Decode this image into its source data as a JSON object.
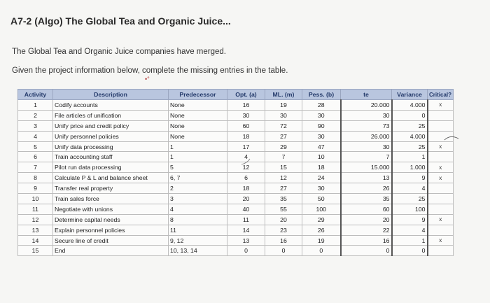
{
  "header": {
    "title": "A7-2 (Algo) The Global Tea and Organic Juice...",
    "para1": "The Global Tea and Organic Juice companies have merged.",
    "para2": "Given the project information below, complete the missing entries in the table."
  },
  "table": {
    "headers": [
      "Activity",
      "Description",
      "Predecessor",
      "Opt. (a)",
      "ML. (m)",
      "Pess. (b)",
      "te",
      "Variance",
      "Critical?"
    ],
    "rows": [
      {
        "act": "1",
        "desc": "Codify accounts",
        "pred": "None",
        "a": "16",
        "m": "19",
        "b": "28",
        "te": "20.000",
        "var": "4.000",
        "crit": "x"
      },
      {
        "act": "2",
        "desc": "File articles of unification",
        "pred": "None",
        "a": "30",
        "m": "30",
        "b": "30",
        "te": "30",
        "var": "0",
        "crit": ""
      },
      {
        "act": "3",
        "desc": "Unify price and credit policy",
        "pred": "None",
        "a": "60",
        "m": "72",
        "b": "90",
        "te": "73",
        "var": "25",
        "crit": ""
      },
      {
        "act": "4",
        "desc": "Unify personnel policies",
        "pred": "None",
        "a": "18",
        "m": "27",
        "b": "30",
        "te": "26.000",
        "var": "4.000",
        "crit": ""
      },
      {
        "act": "5",
        "desc": "Unify data processing",
        "pred": "1",
        "a": "17",
        "m": "29",
        "b": "47",
        "te": "30",
        "var": "25",
        "crit": "x"
      },
      {
        "act": "6",
        "desc": "Train accounting staff",
        "pred": "1",
        "a": "4",
        "m": "7",
        "b": "10",
        "te": "7",
        "var": "1",
        "crit": ""
      },
      {
        "act": "7",
        "desc": "Pilot run data processing",
        "pred": "5",
        "a": "12",
        "m": "15",
        "b": "18",
        "te": "15.000",
        "var": "1.000",
        "crit": "x"
      },
      {
        "act": "8",
        "desc": "Calculate P & L and balance sheet",
        "pred": "6, 7",
        "a": "6",
        "m": "12",
        "b": "24",
        "te": "13",
        "var": "9",
        "crit": "x"
      },
      {
        "act": "9",
        "desc": "Transfer real property",
        "pred": "2",
        "a": "18",
        "m": "27",
        "b": "30",
        "te": "26",
        "var": "4",
        "crit": ""
      },
      {
        "act": "10",
        "desc": "Train sales force",
        "pred": "3",
        "a": "20",
        "m": "35",
        "b": "50",
        "te": "35",
        "var": "25",
        "crit": ""
      },
      {
        "act": "11",
        "desc": "Negotiate with unions",
        "pred": "4",
        "a": "40",
        "m": "55",
        "b": "100",
        "te": "60",
        "var": "100",
        "crit": ""
      },
      {
        "act": "12",
        "desc": "Determine capital needs",
        "pred": "8",
        "a": "11",
        "m": "20",
        "b": "29",
        "te": "20",
        "var": "9",
        "crit": "x"
      },
      {
        "act": "13",
        "desc": "Explain personnel policies",
        "pred": "11",
        "a": "14",
        "m": "23",
        "b": "26",
        "te": "22",
        "var": "4",
        "crit": ""
      },
      {
        "act": "14",
        "desc": "Secure line of credit",
        "pred": "9, 12",
        "a": "13",
        "m": "16",
        "b": "19",
        "te": "16",
        "var": "1",
        "crit": "x"
      },
      {
        "act": "15",
        "desc": "End",
        "pred": "10, 13, 14",
        "a": "0",
        "m": "0",
        "b": "0",
        "te": "0",
        "var": "0",
        "crit": ""
      }
    ]
  }
}
